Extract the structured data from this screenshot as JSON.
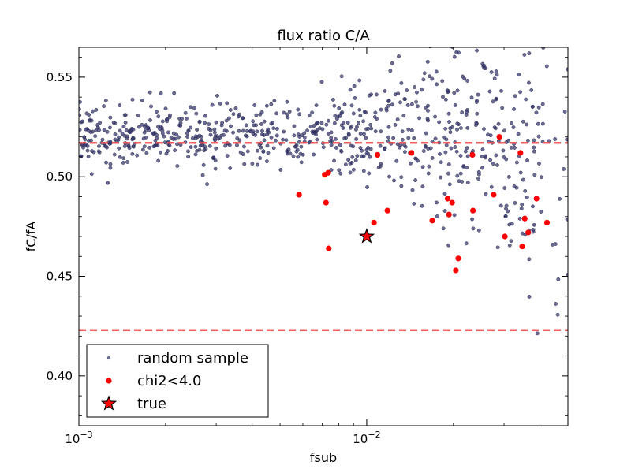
{
  "chart_data": {
    "type": "scatter",
    "title": "flux ratio C/A",
    "xlabel": "fsub",
    "ylabel": "fC/fA",
    "xscale": "log",
    "xlim": [
      0.001,
      0.05
    ],
    "ylim": [
      0.375,
      0.565
    ],
    "x_ticks": [
      {
        "value": 0.001,
        "base": "10",
        "exp": "−3"
      },
      {
        "value": 0.01,
        "base": "10",
        "exp": "−2"
      }
    ],
    "y_ticks": [
      {
        "value": 0.4,
        "label": "0.40"
      },
      {
        "value": 0.45,
        "label": "0.45"
      },
      {
        "value": 0.5,
        "label": "0.50"
      },
      {
        "value": 0.55,
        "label": "0.55"
      }
    ],
    "grid": false,
    "legend_position": "lower-left",
    "reference_lines": [
      {
        "y": 0.517,
        "color": "#f05050",
        "style": "dashed"
      },
      {
        "y": 0.423,
        "color": "#f05050",
        "style": "dashed"
      }
    ],
    "series": [
      {
        "name": "random sample",
        "marker": "dot",
        "color": "#3a3a6e",
        "generated": {
          "count": 820,
          "seed": 12345,
          "log10_x_range": [
            -3.0,
            -1.3
          ],
          "center_y": 0.521,
          "spread_start": 0.008,
          "spread_end": 0.05,
          "spread_start_at": -2.4
        }
      },
      {
        "name": "chi2<4.0",
        "marker": "circle",
        "color": "#ff0000",
        "points": [
          [
            0.00582,
            0.491
          ],
          [
            0.00715,
            0.501
          ],
          [
            0.00735,
            0.502
          ],
          [
            0.00722,
            0.487
          ],
          [
            0.00738,
            0.464
          ],
          [
            0.0109,
            0.511
          ],
          [
            0.0143,
            0.512
          ],
          [
            0.0106,
            0.477
          ],
          [
            0.0118,
            0.483
          ],
          [
            0.0169,
            0.478
          ],
          [
            0.0191,
            0.489
          ],
          [
            0.0198,
            0.487
          ],
          [
            0.0193,
            0.481
          ],
          [
            0.0208,
            0.459
          ],
          [
            0.0204,
            0.453
          ],
          [
            0.0233,
            0.511
          ],
          [
            0.0234,
            0.483
          ],
          [
            0.0276,
            0.491
          ],
          [
            0.0289,
            0.52
          ],
          [
            0.0302,
            0.47
          ],
          [
            0.0342,
            0.512
          ],
          [
            0.0354,
            0.479
          ],
          [
            0.0364,
            0.472
          ],
          [
            0.0347,
            0.465
          ],
          [
            0.0389,
            0.489
          ],
          [
            0.0423,
            0.477
          ]
        ]
      },
      {
        "name": "true",
        "marker": "star",
        "color": "#ff0000",
        "points": [
          [
            0.01,
            0.47
          ]
        ]
      }
    ]
  }
}
